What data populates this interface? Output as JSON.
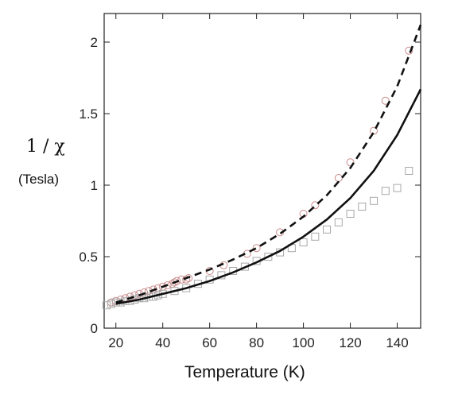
{
  "chart_data": {
    "type": "scatter",
    "xlabel": "Temperature (K)",
    "ylabel": "1 / χ",
    "ylabel_unit": "(Tesla)",
    "xlim": [
      15,
      150
    ],
    "ylim": [
      0,
      2.2
    ],
    "xticks": [
      20,
      40,
      60,
      80,
      100,
      120,
      140
    ],
    "yticks": [
      0,
      0.5,
      1,
      1.5,
      2
    ],
    "xtick_labels": [
      "20",
      "40",
      "60",
      "80",
      "100",
      "120",
      "140"
    ],
    "ytick_labels": [
      "0",
      "0.5",
      "1",
      "1.5",
      "2"
    ],
    "series": [
      {
        "kind": "scatter",
        "marker": "circle",
        "color": "#c98a8a",
        "x": [
          18,
          20,
          22,
          24,
          26,
          28,
          30,
          32,
          34,
          36,
          38,
          40,
          42,
          44,
          45,
          46,
          48,
          50,
          51,
          60,
          66,
          76,
          80,
          90,
          100,
          105,
          115,
          120,
          130,
          135,
          145
        ],
        "y": [
          0.18,
          0.19,
          0.2,
          0.21,
          0.22,
          0.23,
          0.24,
          0.25,
          0.26,
          0.27,
          0.28,
          0.29,
          0.3,
          0.31,
          0.32,
          0.33,
          0.34,
          0.34,
          0.35,
          0.4,
          0.44,
          0.52,
          0.56,
          0.67,
          0.8,
          0.86,
          1.05,
          1.16,
          1.38,
          1.59,
          1.94
        ]
      },
      {
        "kind": "scatter",
        "marker": "square",
        "color": "#a8a8a8",
        "x": [
          16,
          18,
          20,
          22,
          24,
          26,
          28,
          30,
          32,
          34,
          36,
          38,
          40,
          45,
          50,
          55,
          60,
          65,
          70,
          75,
          80,
          85,
          90,
          95,
          100,
          105,
          110,
          115,
          120,
          125,
          130,
          135,
          140,
          145
        ],
        "y": [
          0.16,
          0.17,
          0.18,
          0.18,
          0.19,
          0.19,
          0.2,
          0.21,
          0.21,
          0.22,
          0.22,
          0.23,
          0.24,
          0.26,
          0.28,
          0.31,
          0.34,
          0.37,
          0.4,
          0.43,
          0.47,
          0.5,
          0.53,
          0.56,
          0.6,
          0.64,
          0.69,
          0.74,
          0.8,
          0.85,
          0.89,
          0.96,
          0.98,
          1.1
        ]
      },
      {
        "kind": "line",
        "style": "dashed",
        "color": "#111111",
        "x": [
          20,
          30,
          40,
          50,
          60,
          70,
          80,
          90,
          100,
          110,
          120,
          130,
          140,
          150
        ],
        "y": [
          0.18,
          0.23,
          0.29,
          0.35,
          0.41,
          0.48,
          0.56,
          0.66,
          0.78,
          0.93,
          1.12,
          1.37,
          1.69,
          2.12
        ]
      },
      {
        "kind": "line",
        "style": "solid",
        "color": "#111111",
        "x": [
          20,
          30,
          40,
          50,
          60,
          70,
          80,
          90,
          100,
          110,
          120,
          130,
          140,
          150
        ],
        "y": [
          0.17,
          0.2,
          0.24,
          0.28,
          0.33,
          0.39,
          0.46,
          0.54,
          0.64,
          0.76,
          0.91,
          1.1,
          1.35,
          1.67
        ]
      }
    ]
  }
}
